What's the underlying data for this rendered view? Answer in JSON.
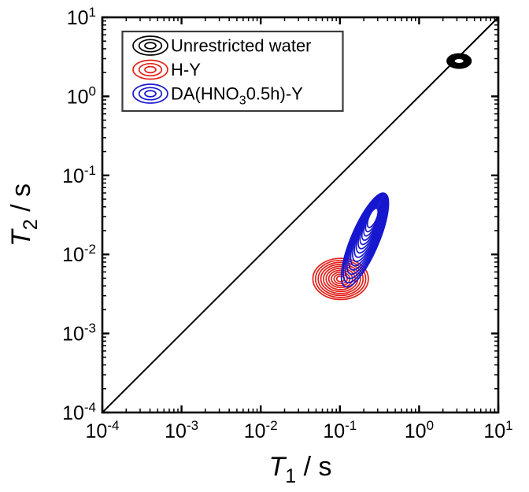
{
  "chart_data": {
    "type": "contour",
    "scale": "log-log",
    "grid": false,
    "x_axis": {
      "label": {
        "pre": "T",
        "sub": "1",
        "post": " / s"
      },
      "tick_base": "10",
      "tick_exponents": [
        -4,
        -3,
        -2,
        -1,
        0,
        1
      ],
      "range_exponents": [
        -4,
        1
      ]
    },
    "y_axis": {
      "label": {
        "pre": "T",
        "sub": "2",
        "post": " / s"
      },
      "tick_base": "10",
      "tick_exponents": [
        -4,
        -3,
        -2,
        -1,
        0,
        1
      ],
      "range_exponents": [
        -4,
        1
      ]
    },
    "reference_line": {
      "meaning": "diagonal T1 = T2",
      "from": [
        0.0001,
        0.0001
      ],
      "to": [
        10,
        10
      ],
      "color": "#000000"
    },
    "legend": {
      "position": "top-left",
      "border_color": "#3c3c3c",
      "entries": [
        {
          "label": {
            "pre": "Unrestricted water",
            "sub": "",
            "post": ""
          },
          "color": "#000000"
        },
        {
          "label": {
            "pre": "H-Y",
            "sub": "",
            "post": ""
          },
          "color": "#e32119"
        },
        {
          "label": {
            "pre": "DA(HNO",
            "sub": "3",
            "post": "0.5h)-Y"
          },
          "color": "#1717cf"
        }
      ]
    },
    "series": [
      {
        "name": "Unrestricted water",
        "color": "#000000",
        "style": "filled",
        "peak": {
          "T1": 3.2,
          "T2": 2.8
        },
        "outer_half_decades": {
          "major": 0.16,
          "minor": 0.1
        },
        "core_half_decades": {
          "major": 0.055,
          "minor": 0.025
        },
        "tilt_deg": 0,
        "rings": 1
      },
      {
        "name": "H-Y",
        "color": "#e32119",
        "style": "rings",
        "peak": {
          "T1": 0.102,
          "T2": 0.0049
        },
        "outer_center": {
          "T1": 0.102,
          "T2": 0.0049
        },
        "outer_half_decades": {
          "major": 0.35,
          "minor": 0.26
        },
        "inner_half_decades": {
          "major": 0.05,
          "minor": 0.035
        },
        "tilt_deg": 0,
        "rings": 10
      },
      {
        "name": "DA(HNO3 0.5h)-Y",
        "color": "#1717cf",
        "style": "rings",
        "peak": {
          "T1": 0.26,
          "T2": 0.029
        },
        "outer_center": {
          "T1": 0.207,
          "T2": 0.0152
        },
        "outer_half_decades": {
          "major": 0.64,
          "minor": 0.175
        },
        "inner_half_decades": {
          "major": 0.13,
          "minor": 0.048
        },
        "tilt_deg": 67,
        "rings": 15
      }
    ]
  }
}
